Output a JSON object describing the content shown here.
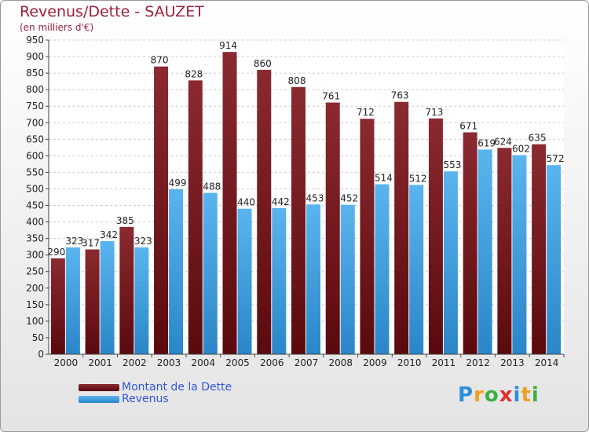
{
  "chart_data": {
    "type": "bar",
    "title": "Revenus/Dette - SAUZET",
    "subtitle": "(en milliers d'€)",
    "categories": [
      "2000",
      "2001",
      "2002",
      "2003",
      "2004",
      "2005",
      "2006",
      "2007",
      "2008",
      "2009",
      "2010",
      "2011",
      "2012",
      "2013",
      "2014"
    ],
    "series": [
      {
        "name": "Montant de la Dette",
        "color": "#7a1f24",
        "values": [
          290,
          317,
          385,
          870,
          828,
          914,
          860,
          808,
          761,
          712,
          763,
          713,
          671,
          624,
          635
        ]
      },
      {
        "name": "Revenus",
        "color": "#4aa3e0",
        "values": [
          323,
          342,
          323,
          499,
          488,
          440,
          442,
          453,
          452,
          514,
          512,
          553,
          619,
          602,
          572
        ]
      }
    ],
    "ylim": [
      0,
      950
    ],
    "yticks": [
      0,
      50,
      100,
      150,
      200,
      250,
      300,
      350,
      400,
      450,
      500,
      550,
      600,
      650,
      700,
      750,
      800,
      850,
      900,
      950
    ],
    "grid": true,
    "legend_position": "bottom-left"
  },
  "logo": {
    "letters": [
      "P",
      "r",
      "o",
      "x",
      "i",
      "t",
      "i"
    ],
    "colors": [
      "#2a8fd8",
      "#f0a020",
      "#3cb043",
      "#e03030",
      "#2a8fd8",
      "#f0a020",
      "#3cb043"
    ]
  }
}
